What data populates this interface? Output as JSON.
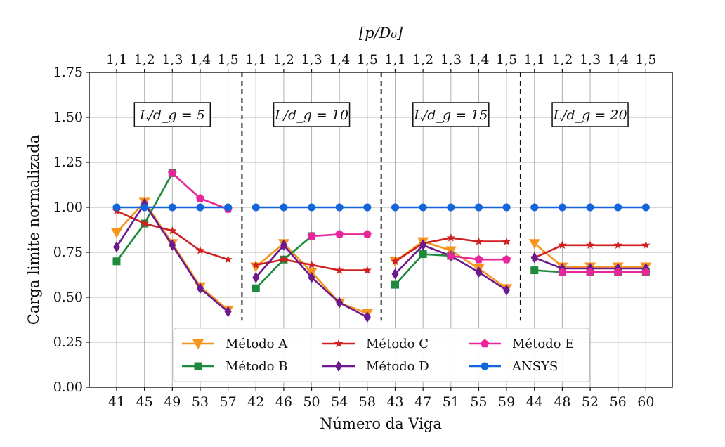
{
  "chart_data": {
    "type": "line",
    "title": "",
    "xlabel": "Número da Viga",
    "ylabel": "Carga limite normalizada",
    "top_axis_label": "[p/D₀]",
    "ylim": [
      0,
      1.75
    ],
    "yticks": [
      "0.00",
      "0.25",
      "0.50",
      "0.75",
      "1.00",
      "1.25",
      "1.50",
      "1.75"
    ],
    "grid": true,
    "legend_position": "lower-center",
    "categories": [
      "41",
      "45",
      "49",
      "53",
      "57",
      "42",
      "46",
      "50",
      "54",
      "58",
      "43",
      "47",
      "51",
      "55",
      "59",
      "44",
      "48",
      "52",
      "56",
      "60"
    ],
    "top_ticks": [
      "1,1",
      "1,2",
      "1,3",
      "1,4",
      "1,5",
      "1,1",
      "1,2",
      "1,3",
      "1,4",
      "1,5",
      "1,1",
      "1,2",
      "1,3",
      "1,4",
      "1,5",
      "1,1",
      "1,2",
      "1,3",
      "1,4",
      "1,5"
    ],
    "groups": [
      {
        "label": "L/d_g = 5"
      },
      {
        "label": "L/d_g = 10"
      },
      {
        "label": "L/d_g = 15"
      },
      {
        "label": "L/d_g = 20"
      }
    ],
    "series": [
      {
        "name": "Método A",
        "color": "#f7941d",
        "marker": "triangle-down",
        "values": [
          0.86,
          1.03,
          0.8,
          0.56,
          0.43,
          0.67,
          0.8,
          0.64,
          0.47,
          0.41,
          0.7,
          0.81,
          0.76,
          0.66,
          0.55,
          0.8,
          0.67,
          0.67,
          0.67,
          0.67
        ]
      },
      {
        "name": "Método B",
        "color": "#1e8a3e",
        "marker": "square",
        "values": [
          0.7,
          0.91,
          1.19,
          null,
          null,
          0.55,
          0.71,
          0.84,
          null,
          null,
          0.57,
          0.74,
          0.73,
          null,
          null,
          0.65,
          0.64,
          0.64,
          0.64,
          0.64
        ]
      },
      {
        "name": "Método C",
        "color": "#d01f1f",
        "marker": "star",
        "values": [
          0.98,
          0.91,
          0.87,
          0.76,
          0.71,
          0.68,
          0.71,
          0.68,
          0.65,
          0.65,
          0.7,
          0.8,
          0.83,
          0.81,
          0.81,
          0.72,
          0.79,
          0.79,
          0.79,
          0.79
        ]
      },
      {
        "name": "Método D",
        "color": "#6a1a8c",
        "marker": "diamond",
        "values": [
          0.78,
          1.02,
          0.79,
          0.55,
          0.42,
          0.61,
          0.79,
          0.61,
          0.47,
          0.39,
          0.63,
          0.79,
          0.73,
          0.64,
          0.54,
          0.72,
          0.66,
          0.66,
          0.66,
          0.66
        ]
      },
      {
        "name": "Método E",
        "color": "#e8259a",
        "marker": "pentagon",
        "values": [
          null,
          null,
          1.19,
          1.05,
          0.99,
          null,
          null,
          0.84,
          0.85,
          0.85,
          null,
          null,
          0.73,
          0.71,
          0.71,
          null,
          0.64,
          0.64,
          0.64,
          0.64
        ]
      },
      {
        "name": "ANSYS",
        "color": "#1464dc",
        "marker": "circle",
        "values": [
          1,
          1,
          1,
          1,
          1,
          1,
          1,
          1,
          1,
          1,
          1,
          1,
          1,
          1,
          1,
          1,
          1,
          1,
          1,
          1
        ]
      }
    ]
  }
}
